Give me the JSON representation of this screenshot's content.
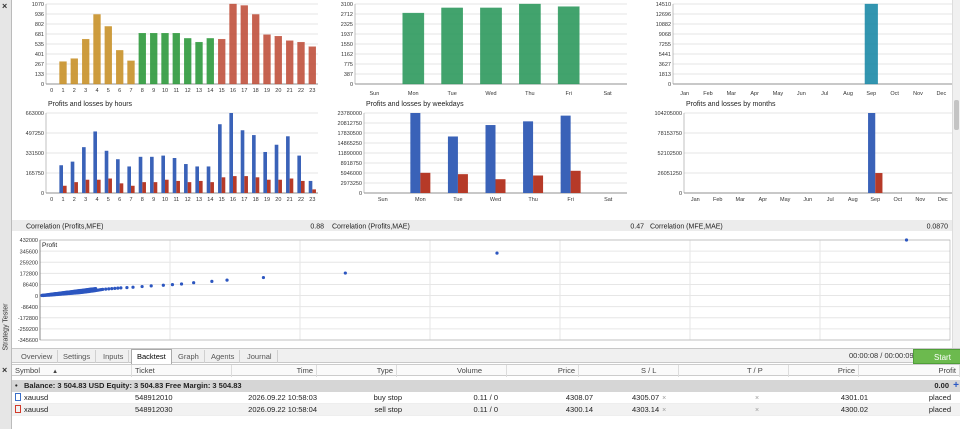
{
  "side": {
    "close_top": "×",
    "close_bottom": "×",
    "vertical_label": "Strategy Tester"
  },
  "chart_data": [
    {
      "type": "bar",
      "title": "",
      "categories": [
        "0",
        "1",
        "2",
        "3",
        "4",
        "5",
        "6",
        "7",
        "8",
        "9",
        "10",
        "11",
        "12",
        "13",
        "14",
        "15",
        "16",
        "17",
        "18",
        "19",
        "20",
        "21",
        "22",
        "23"
      ],
      "yticks": [
        "1070",
        "936",
        "802",
        "681",
        "535",
        "401",
        "267",
        "133",
        "0"
      ],
      "ylim": [
        0,
        1070
      ],
      "series": [
        {
          "values": [
            0,
            300,
            340,
            600,
            930,
            770,
            450,
            310,
            680,
            680,
            680,
            680,
            610,
            560,
            610,
            600,
            1070,
            1050,
            930,
            660,
            640,
            580,
            560,
            500
          ],
          "colors": [
            "#c8922a",
            "#c8922a",
            "#c8922a",
            "#c8922a",
            "#c8922a",
            "#c8922a",
            "#c8922a",
            "#c8922a",
            "#2e9a3c",
            "#2e9a3c",
            "#2e9a3c",
            "#2e9a3c",
            "#2e9a3c",
            "#2e9a3c",
            "#2e9a3c",
            "#c0523e",
            "#c0523e",
            "#c0523e",
            "#c0523e",
            "#c0523e",
            "#c0523e",
            "#c0523e",
            "#c0523e",
            "#c0523e"
          ]
        }
      ]
    },
    {
      "type": "bar",
      "title": "",
      "categories": [
        "Sun",
        "Mon",
        "Tue",
        "Wed",
        "Thu",
        "Fri",
        "Sat"
      ],
      "yticks": [
        "3100",
        "2712",
        "2325",
        "1937",
        "1550",
        "1162",
        "775",
        "387",
        "0"
      ],
      "ylim": [
        0,
        3100
      ],
      "series": [
        {
          "values": [
            0,
            2750,
            2950,
            2950,
            3100,
            3000,
            0
          ],
          "colors": [
            "#2e9a5e"
          ]
        }
      ]
    },
    {
      "type": "bar",
      "title": "",
      "categories": [
        "Jan",
        "Feb",
        "Mar",
        "Apr",
        "May",
        "Jun",
        "Jul",
        "Aug",
        "Sep",
        "Oct",
        "Nov",
        "Dec"
      ],
      "yticks": [
        "14510",
        "12696",
        "10882",
        "9068",
        "7255",
        "5441",
        "3627",
        "1813",
        "0"
      ],
      "ylim": [
        0,
        14510
      ],
      "series": [
        {
          "values": [
            0,
            0,
            0,
            0,
            0,
            0,
            0,
            0,
            14510,
            0,
            0,
            0
          ],
          "colors": [
            "#1c8aa8"
          ]
        }
      ]
    },
    {
      "type": "bar",
      "title": "Profits and losses by hours",
      "categories": [
        "0",
        "1",
        "2",
        "3",
        "4",
        "5",
        "6",
        "7",
        "8",
        "9",
        "10",
        "11",
        "12",
        "13",
        "14",
        "15",
        "16",
        "17",
        "18",
        "19",
        "20",
        "21",
        "22",
        "23"
      ],
      "yticks": [
        "663000",
        "497250",
        "331500",
        "165750",
        "0"
      ],
      "ylim": [
        0,
        663000
      ],
      "series": [
        {
          "name": "Profits",
          "values": [
            0,
            230000,
            260000,
            380000,
            510000,
            350000,
            280000,
            220000,
            300000,
            300000,
            310000,
            290000,
            240000,
            220000,
            220000,
            570000,
            663000,
            520000,
            480000,
            340000,
            400000,
            470000,
            310000,
            100000
          ],
          "color": "#3a62b8"
        },
        {
          "name": "Losses",
          "values": [
            0,
            60000,
            90000,
            110000,
            110000,
            120000,
            80000,
            60000,
            90000,
            90000,
            110000,
            100000,
            90000,
            100000,
            90000,
            130000,
            140000,
            140000,
            130000,
            110000,
            110000,
            120000,
            100000,
            30000
          ],
          "color": "#b63a28"
        }
      ]
    },
    {
      "type": "bar",
      "title": "Profits and losses by weekdays",
      "categories": [
        "Sun",
        "Mon",
        "Tue",
        "Wed",
        "Thu",
        "Fri",
        "Sat"
      ],
      "yticks": [
        "23780000",
        "20812750",
        "17830500",
        "14865250",
        "11890000",
        "8918750",
        "5946000",
        "2973250",
        "0"
      ],
      "ylim": [
        0,
        23780000
      ],
      "series": [
        {
          "name": "Profits",
          "values": [
            0,
            23780000,
            16800000,
            20200000,
            21300000,
            23000000,
            0
          ],
          "color": "#3a62b8"
        },
        {
          "name": "Losses",
          "values": [
            0,
            6000000,
            5600000,
            4100000,
            5200000,
            6600000,
            0
          ],
          "color": "#b63a28"
        }
      ]
    },
    {
      "type": "bar",
      "title": "Profits and losses by months",
      "categories": [
        "Jan",
        "Feb",
        "Mar",
        "Apr",
        "May",
        "Jun",
        "Jul",
        "Aug",
        "Sep",
        "Oct",
        "Nov",
        "Dec"
      ],
      "yticks": [
        "104205000",
        "78153750",
        "52102500",
        "26051250",
        "0"
      ],
      "ylim": [
        0,
        104205000
      ],
      "series": [
        {
          "name": "Profits",
          "values": [
            0,
            0,
            0,
            0,
            0,
            0,
            0,
            0,
            104205000,
            0,
            0,
            0
          ],
          "color": "#3a62b8"
        },
        {
          "name": "Losses",
          "values": [
            0,
            0,
            0,
            0,
            0,
            0,
            0,
            0,
            26000000,
            0,
            0,
            0
          ],
          "color": "#b63a28"
        }
      ]
    },
    {
      "type": "scatter",
      "title": "",
      "legend": "Profit",
      "yticks": [
        "432000",
        "345600",
        "259200",
        "172800",
        "86400",
        "0",
        "-86400",
        "-172800",
        "-259200",
        "-345600"
      ],
      "ylim": [
        -345600,
        432000
      ],
      "points": [
        [
          0,
          0
        ],
        [
          0.01,
          500
        ],
        [
          0.02,
          1200
        ],
        [
          0.03,
          2000
        ],
        [
          0.04,
          2800
        ],
        [
          0.05,
          3600
        ],
        [
          0.06,
          4500
        ],
        [
          0.07,
          5400
        ],
        [
          0.08,
          6300
        ],
        [
          0.09,
          7200
        ],
        [
          0.1,
          8000
        ],
        [
          0.11,
          9000
        ],
        [
          0.12,
          10000
        ],
        [
          0.13,
          11000
        ],
        [
          0.14,
          12000
        ],
        [
          0.15,
          13000
        ],
        [
          0.16,
          14000
        ],
        [
          0.17,
          15000
        ],
        [
          0.18,
          16000
        ],
        [
          0.19,
          17000
        ],
        [
          0.2,
          18000
        ],
        [
          0.21,
          19000
        ],
        [
          0.22,
          20000
        ],
        [
          0.23,
          21000
        ],
        [
          0.24,
          22000
        ],
        [
          0.25,
          23000
        ],
        [
          0.26,
          24200
        ],
        [
          0.27,
          25500
        ],
        [
          0.28,
          27000
        ],
        [
          0.29,
          28500
        ],
        [
          0.3,
          30000
        ],
        [
          0.31,
          31500
        ],
        [
          0.32,
          33000
        ],
        [
          0.33,
          34800
        ],
        [
          0.34,
          36500
        ],
        [
          0.35,
          38000
        ],
        [
          0.36,
          40000
        ],
        [
          0.37,
          42000
        ],
        [
          0.38,
          44000
        ],
        [
          0.39,
          46000
        ],
        [
          0.4,
          48000
        ],
        [
          0.42,
          50000
        ],
        [
          0.44,
          52000
        ],
        [
          0.46,
          54000
        ],
        [
          0.48,
          56000
        ],
        [
          0.5,
          58000
        ],
        [
          0.52,
          60000
        ],
        [
          0.56,
          62000
        ],
        [
          0.6,
          65000
        ],
        [
          0.66,
          70000
        ],
        [
          0.72,
          75000
        ],
        [
          0.8,
          80000
        ],
        [
          0.86,
          85000
        ],
        [
          0.92,
          90000
        ],
        [
          1.0,
          100000
        ],
        [
          1.12,
          110000
        ],
        [
          1.22,
          120000
        ],
        [
          1.46,
          140000
        ],
        [
          2.0,
          175000
        ],
        [
          3.0,
          330000
        ],
        [
          5.7,
          432000
        ]
      ]
    }
  ],
  "correlations": [
    {
      "label": "Correlation (Profits,MFE)",
      "value": "0.88"
    },
    {
      "label": "Correlation (Profits,MAE)",
      "value": "0.47"
    },
    {
      "label": "Correlation (MFE,MAE)",
      "value": "0.0870"
    }
  ],
  "tabs": [
    {
      "label": "Overview",
      "active": false
    },
    {
      "label": "Settings",
      "active": false
    },
    {
      "label": "Inputs",
      "active": false
    },
    {
      "label": "Backtest",
      "active": true
    },
    {
      "label": "Graph",
      "active": false
    },
    {
      "label": "Agents",
      "active": false
    },
    {
      "label": "Journal",
      "active": false
    }
  ],
  "timer": "00:00:08 / 00:00:09",
  "start_label": "Start",
  "orders": {
    "headers": [
      "Symbol",
      "Ticket",
      "Time",
      "Type",
      "Volume",
      "Price",
      "S / L",
      "T / P",
      "Price",
      "Profit"
    ],
    "sort_arrow": "▲",
    "balance_line": "Balance: 3 504.83 USD  Equity: 3 504.83  Free Margin: 3 504.83",
    "balance_bullet": "•",
    "balance_profit": "0.00",
    "plus": "+",
    "rows": [
      {
        "symbol": "xauusd",
        "ticket": "548912010",
        "time": "2026.09.22 10:58:03",
        "type": "buy stop",
        "volume": "0.11 / 0",
        "price": "4308.07",
        "sl": "4305.07",
        "tp": "",
        "price2": "4301.01",
        "profit": "placed",
        "x": "×"
      },
      {
        "symbol": "xauusd",
        "ticket": "548912030",
        "time": "2026.09.22 10:58:04",
        "type": "sell stop",
        "volume": "0.11 / 0",
        "price": "4300.14",
        "sl": "4303.14",
        "tp": "",
        "price2": "4300.02",
        "profit": "placed",
        "x": "×"
      }
    ]
  }
}
